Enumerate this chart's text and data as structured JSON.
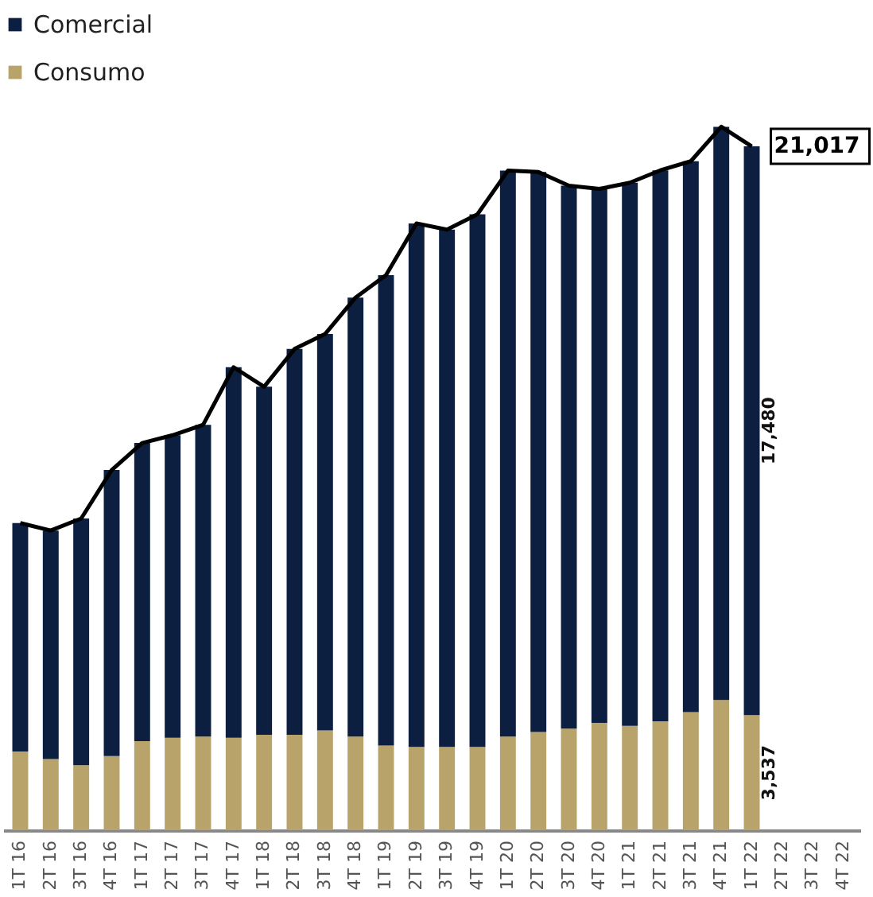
{
  "chart_data": {
    "type": "bar",
    "stacked": true,
    "legend": "top left",
    "categories": [
      "1T 16",
      "2T 16",
      "3T 16",
      "4T 16",
      "1T 17",
      "2T 17",
      "3T 17",
      "4T 17",
      "1T 18",
      "2T 18",
      "3T 18",
      "4T 18",
      "1T 19",
      "2T 19",
      "3T 19",
      "4T 19",
      "1T 20",
      "2T 20",
      "3T 20",
      "4T 20",
      "1T 21",
      "2T 21",
      "3T 21",
      "4T 21",
      "1T 22",
      "2T 22",
      "3T 22",
      "4T 22"
    ],
    "series": [
      {
        "name": "Consumo",
        "color": "#b8a36a",
        "values": [
          2420,
          2190,
          2000,
          2280,
          2740,
          2840,
          2880,
          2840,
          2930,
          2930,
          3070,
          2880,
          2600,
          2560,
          2560,
          2560,
          2880,
          3020,
          3120,
          3300,
          3210,
          3350,
          3630,
          4000,
          3537,
          null,
          null,
          null
        ],
        "value_labels": [
          null,
          null,
          null,
          null,
          null,
          null,
          null,
          null,
          null,
          null,
          null,
          null,
          null,
          null,
          null,
          null,
          null,
          null,
          null,
          null,
          null,
          null,
          null,
          null,
          "3,537",
          null,
          null,
          null
        ]
      },
      {
        "name": "Comercial",
        "color": "#0c1f40",
        "values": [
          7020,
          7020,
          7580,
          8790,
          9160,
          9300,
          9580,
          11390,
          10700,
          11860,
          12180,
          13490,
          14460,
          16090,
          15900,
          16370,
          17390,
          17210,
          16690,
          16410,
          16690,
          16930,
          16930,
          17620,
          17480,
          null,
          null,
          null
        ],
        "value_labels": [
          null,
          null,
          null,
          null,
          null,
          null,
          null,
          null,
          null,
          null,
          null,
          null,
          null,
          null,
          null,
          null,
          null,
          null,
          null,
          null,
          null,
          null,
          null,
          null,
          "17,480",
          null,
          null,
          null
        ]
      },
      {
        "type": "line",
        "color": "#000000",
        "values": [
          9440,
          9210,
          9580,
          11070,
          11900,
          12140,
          12460,
          14230,
          13630,
          14790,
          15250,
          16370,
          17060,
          18650,
          18460,
          18930,
          20270,
          20230,
          19810,
          19710,
          19900,
          20280,
          20560,
          21620,
          21017,
          null,
          null,
          null
        ],
        "value_labels": [
          null,
          null,
          null,
          null,
          null,
          null,
          null,
          null,
          null,
          null,
          null,
          null,
          null,
          null,
          null,
          null,
          null,
          null,
          null,
          null,
          null,
          null,
          null,
          null,
          "21,017",
          null,
          null,
          null
        ]
      }
    ]
  }
}
